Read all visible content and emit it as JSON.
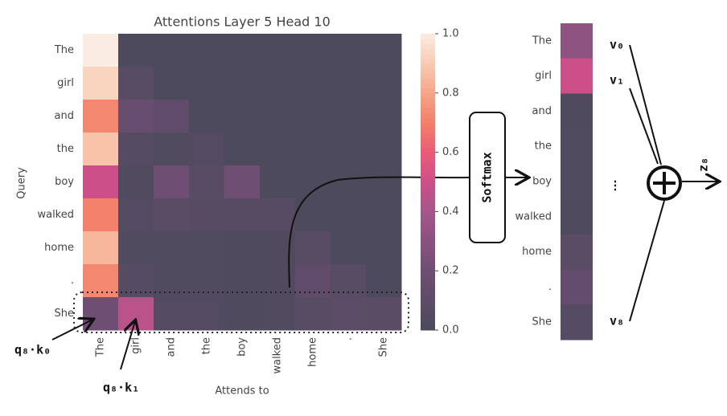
{
  "chart_data": [
    {
      "type": "heatmap",
      "title": "Attentions Layer 5 Head 10",
      "x_label": "Attends to",
      "y_label": "Query",
      "x_categories": [
        "The",
        "girl",
        "and",
        "the",
        "boy",
        "walked",
        "home",
        ".",
        "She"
      ],
      "y_categories": [
        "The",
        "girl",
        "and",
        "the",
        "boy",
        "walked",
        "home",
        ".",
        "She"
      ],
      "values": [
        [
          1.0,
          0,
          0,
          0,
          0,
          0,
          0,
          0,
          0
        ],
        [
          0.93,
          0.07,
          0,
          0,
          0,
          0,
          0,
          0,
          0
        ],
        [
          0.72,
          0.16,
          0.12,
          0,
          0,
          0,
          0,
          0,
          0
        ],
        [
          0.88,
          0.05,
          0.03,
          0.04,
          0,
          0,
          0,
          0,
          0
        ],
        [
          0.5,
          0.03,
          0.2,
          0.07,
          0.2,
          0,
          0,
          0,
          0
        ],
        [
          0.7,
          0.04,
          0.08,
          0.06,
          0.06,
          0.06,
          0,
          0,
          0
        ],
        [
          0.85,
          0.03,
          0.03,
          0.03,
          0.02,
          0.02,
          0.07,
          0,
          0
        ],
        [
          0.72,
          0.05,
          0.03,
          0.03,
          0.02,
          0.02,
          0.12,
          0.07,
          0
        ],
        [
          0.2,
          0.45,
          0.04,
          0.04,
          0.02,
          0.03,
          0.07,
          0.1,
          0.08
        ]
      ],
      "colorbar_lim": [
        0,
        1
      ],
      "colorbar_ticks": [
        {
          "value": 0,
          "label": "0.0"
        },
        0.2,
        0.4,
        0.6,
        0.8,
        {
          "value": 1,
          "label": "1.0"
        }
      ],
      "colorscale": [
        [
          0,
          "#4c4a5c"
        ],
        [
          0.2,
          "#6e4e73"
        ],
        [
          0.4,
          "#a5568a"
        ],
        [
          0.5,
          "#cd4f88"
        ],
        [
          0.6,
          "#ea5b78"
        ],
        [
          0.7,
          "#f3806a"
        ],
        [
          0.8,
          "#f6a487"
        ],
        [
          0.9,
          "#f8cbb2"
        ],
        [
          1,
          "#faece0"
        ]
      ]
    },
    {
      "type": "heatmap-column",
      "y_categories": [
        "The",
        "girl",
        "and",
        "the",
        "boy",
        "walked",
        "home",
        ".",
        "She"
      ],
      "values": [
        0.32,
        0.5,
        0.02,
        0.03,
        0.03,
        0.02,
        0.08,
        0.14,
        0.05
      ]
    }
  ],
  "annotations": {
    "softmax": "Softmax",
    "q8k0": "q₈·k₀",
    "q8k1": "q₈·k₁",
    "v0": "v₀",
    "v1": "v₁",
    "v8": "v₈",
    "dots": "⋮",
    "z8": "z₈"
  }
}
